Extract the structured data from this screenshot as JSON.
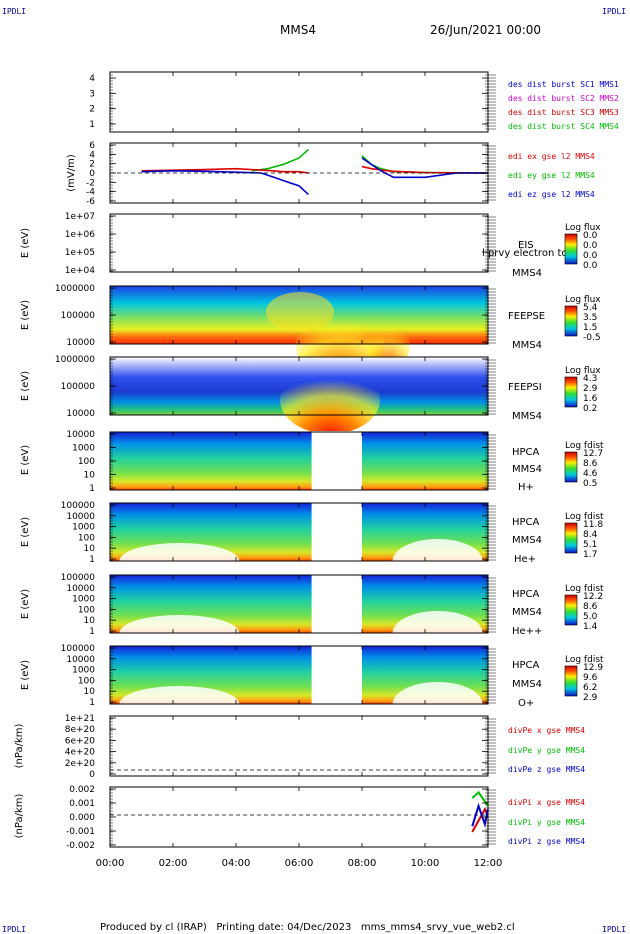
{
  "header": {
    "corner_tl": "IPDLI",
    "corner_tr": "IPDLI",
    "spacecraft": "MMS4",
    "datetime": "26/Jun/2021 00:00"
  },
  "footer": {
    "text": "Produced by cl (IRAP)   Printing date: 04/Dec/2023   mms_mms4_srvy_vue_web2.cl",
    "corner_bl": "IPDLI",
    "corner_br": "IPDLI"
  },
  "x_axis": {
    "range_hours": [
      0,
      12
    ],
    "ticks": [
      "00:00",
      "02:00",
      "04:00",
      "06:00",
      "08:00",
      "10:00",
      "12:00"
    ],
    "tick_hours": [
      0,
      2,
      4,
      6,
      8,
      10,
      12
    ]
  },
  "colors": {
    "mms1": "#0000cc",
    "mms2": "#cc00cc",
    "mms3": "#cc0000",
    "mms4": "#00cc00",
    "x_comp": "#dd0000",
    "y_comp": "#00bb00",
    "z_comp": "#0000cc"
  },
  "chart_data": [
    {
      "id": "des_burst",
      "type": "line",
      "y_ticks": [
        "1",
        "2",
        "3",
        "4"
      ],
      "ylim": [
        0.6,
        4.5
      ],
      "legend": [
        {
          "label": "des dist burst SC1 MMS1",
          "color": "#0000cc"
        },
        {
          "label": "des dist burst SC2 MMS2",
          "color": "#cc00cc"
        },
        {
          "label": "des dist burst SC3 MMS3",
          "color": "#cc0000"
        },
        {
          "label": "des dist burst SC4 MMS4",
          "color": "#00cc00"
        }
      ]
    },
    {
      "id": "edi",
      "type": "line",
      "ylabel": "(mV/m)",
      "y_ticks": [
        "6",
        "4",
        "2",
        "0",
        "-2",
        "-4",
        "-6"
      ],
      "ylim": [
        -7,
        7
      ],
      "legend": [
        {
          "label": "edi ex gse l2 MMS4",
          "color": "#dd0000"
        },
        {
          "label": "edi ey gse l2 MMS4",
          "color": "#00bb00"
        },
        {
          "label": "edi ez gse l2 MMS4",
          "color": "#0000cc"
        }
      ],
      "gap_hours": [
        6.4,
        7.9
      ],
      "series": [
        {
          "name": "ey",
          "x": [
            4.5,
            5.0,
            5.5,
            6.0,
            6.3,
            8.0,
            8.3,
            8.6,
            9.0,
            10.0,
            11.0,
            12.0
          ],
          "values": [
            0.5,
            1.0,
            2.0,
            3.5,
            5.5,
            4.0,
            2.0,
            1.0,
            0.3,
            0.1,
            0.0,
            0.0
          ]
        },
        {
          "name": "ex",
          "x": [
            1.0,
            3.0,
            4.0,
            5.0,
            5.5,
            6.0,
            6.3,
            8.0,
            8.3,
            8.6,
            9.0,
            10.0,
            12.0
          ],
          "values": [
            0.5,
            0.8,
            1.0,
            0.6,
            0.3,
            0.3,
            0.0,
            1.5,
            1.0,
            0.7,
            0.4,
            0.1,
            0.0
          ]
        },
        {
          "name": "ez",
          "x": [
            1.0,
            2.0,
            3.0,
            4.0,
            4.8,
            5.2,
            5.6,
            6.0,
            6.3,
            8.0,
            8.3,
            8.6,
            9.0,
            10.0,
            11.0,
            12.0
          ],
          "values": [
            0.3,
            0.5,
            0.4,
            0.2,
            0.0,
            -1.0,
            -2.0,
            -3.0,
            -5.0,
            3.5,
            2.0,
            0.5,
            -1.0,
            -1.0,
            0.0,
            0.0
          ]
        }
      ]
    },
    {
      "id": "eis",
      "type": "heatmap",
      "ylabel": "E (eV)",
      "y_ticks": [
        "1e+07",
        "1e+06",
        "1e+05",
        "1e+04"
      ],
      "title_right": "EIS",
      "subtitle_right": "MMS4",
      "overlay_text": "l prvy electron to",
      "colorbar": {
        "title": "Log flux",
        "labels": [
          "0.0",
          "0.0",
          "0.0",
          "0.0"
        ]
      }
    },
    {
      "id": "feepse",
      "type": "heatmap",
      "ylabel": "E (eV)",
      "y_ticks": [
        "1000000",
        "100000",
        "10000"
      ],
      "title_right": "FEEPSE",
      "subtitle_right": "MMS4",
      "colorbar": {
        "title": "Log flux",
        "labels": [
          "5.4",
          "3.5",
          "1.5",
          "-0.5"
        ]
      }
    },
    {
      "id": "feepsi",
      "type": "heatmap",
      "ylabel": "E (eV)",
      "y_ticks": [
        "1000000",
        "100000",
        "10000"
      ],
      "title_right": "FEEPSI",
      "subtitle_right": "MMS4",
      "colorbar": {
        "title": "Log flux",
        "labels": [
          "4.3",
          "2.9",
          "1.6",
          "0.2"
        ]
      }
    },
    {
      "id": "hpca_h",
      "type": "heatmap",
      "ylabel": "E (eV)",
      "y_ticks": [
        "10000",
        "1000",
        "100",
        "10",
        "1"
      ],
      "title_right": "HPCA",
      "subtitle_right": "MMS4",
      "species": "H+",
      "gap_hours": [
        6.4,
        8.0
      ],
      "colorbar": {
        "title": "Log fdist",
        "labels": [
          "12.7",
          "8.6",
          "4.6",
          "0.5"
        ]
      }
    },
    {
      "id": "hpca_he",
      "type": "heatmap",
      "ylabel": "E (eV)",
      "y_ticks": [
        "100000",
        "10000",
        "1000",
        "100",
        "10",
        "1"
      ],
      "title_right": "HPCA",
      "subtitle_right": "MMS4",
      "species": "He+",
      "gap_hours": [
        6.4,
        8.0
      ],
      "colorbar": {
        "title": "Log fdist",
        "labels": [
          "11.8",
          "8.4",
          "5.1",
          "1.7"
        ]
      }
    },
    {
      "id": "hpca_hepp",
      "type": "heatmap",
      "ylabel": "E (eV)",
      "y_ticks": [
        "100000",
        "10000",
        "1000",
        "100",
        "10",
        "1"
      ],
      "title_right": "HPCA",
      "subtitle_right": "MMS4",
      "species": "He++",
      "gap_hours": [
        6.4,
        8.0
      ],
      "colorbar": {
        "title": "Log fdist",
        "labels": [
          "12.2",
          "8.6",
          "5.0",
          "1.4"
        ]
      }
    },
    {
      "id": "hpca_o",
      "type": "heatmap",
      "ylabel": "E (eV)",
      "y_ticks": [
        "100000",
        "10000",
        "1000",
        "100",
        "10",
        "1"
      ],
      "title_right": "HPCA",
      "subtitle_right": "MMS4",
      "species": "O+",
      "gap_hours": [
        6.4,
        8.0
      ],
      "colorbar": {
        "title": "Log fdist",
        "labels": [
          "12.9",
          "9.6",
          "6.2",
          "2.9"
        ]
      }
    },
    {
      "id": "divpe",
      "type": "line",
      "ylabel": "(nPa/km)",
      "y_ticks": [
        "1e+21",
        "8e+20",
        "6e+20",
        "4e+20",
        "2e+20",
        "0"
      ],
      "legend": [
        {
          "label": "divPe x gse MMS4",
          "color": "#dd0000"
        },
        {
          "label": "divPe y gse MMS4",
          "color": "#00bb00"
        },
        {
          "label": "divPe z gse MMS4",
          "color": "#0000cc"
        }
      ]
    },
    {
      "id": "divpi",
      "type": "line",
      "ylabel": "(nPa/km)",
      "y_ticks": [
        "0.002",
        "0.001",
        "0.000",
        "-0.001",
        "-0.002"
      ],
      "ylim": [
        -0.0027,
        0.0023
      ],
      "legend": [
        {
          "label": "divPi x gse MMS4",
          "color": "#dd0000"
        },
        {
          "label": "divPi y gse MMS4",
          "color": "#00bb00"
        },
        {
          "label": "divPi z gse MMS4",
          "color": "#0000cc"
        }
      ],
      "series": [
        {
          "name": "y",
          "x": [
            11.5,
            11.7,
            11.9,
            12.0
          ],
          "values": [
            0.0015,
            0.002,
            0.0012,
            0.0008
          ]
        },
        {
          "name": "x",
          "x": [
            11.5,
            11.7,
            11.9,
            12.0
          ],
          "values": [
            -0.0015,
            -0.0005,
            0.0005,
            0.0
          ]
        },
        {
          "name": "z",
          "x": [
            11.5,
            11.7,
            11.9,
            12.0
          ],
          "values": [
            -0.001,
            0.0008,
            -0.0008,
            0.0005
          ]
        }
      ]
    }
  ]
}
